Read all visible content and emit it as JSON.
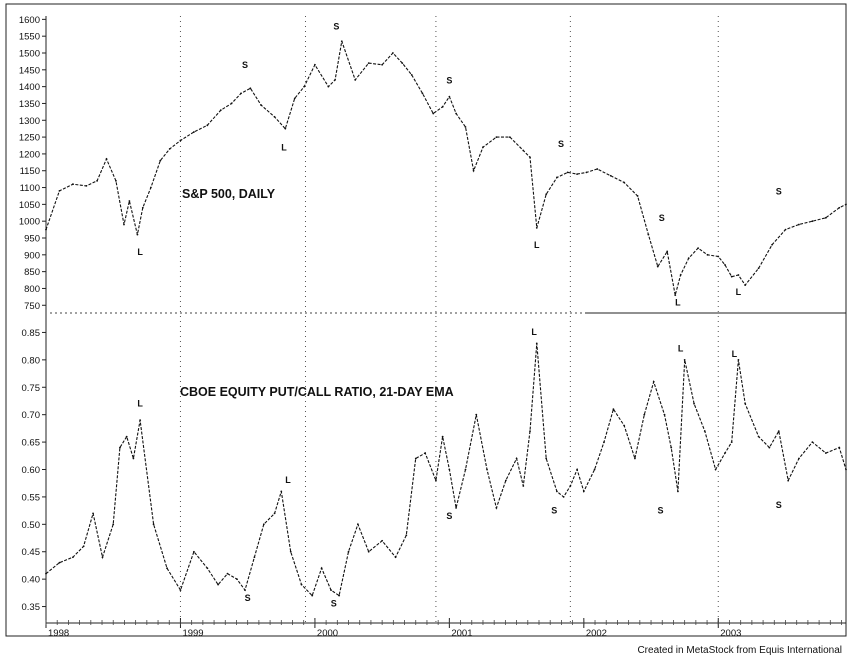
{
  "credit": "Created in MetaStock from Equis International",
  "chart_data": [
    {
      "type": "line",
      "title": "S&P 500, DAILY",
      "ylim": [
        730,
        1610
      ],
      "yticks": [
        750,
        800,
        850,
        900,
        950,
        1000,
        1050,
        1100,
        1150,
        1200,
        1250,
        1300,
        1350,
        1400,
        1450,
        1500,
        1550,
        1600
      ],
      "xticks": [
        "1998",
        "1999",
        "2000",
        "2001",
        "2002",
        "2003"
      ],
      "xtick_values": [
        1998.0,
        1999.0,
        2000.0,
        2001.0,
        2002.0,
        2003.0
      ],
      "xlim": [
        1998.0,
        2003.95
      ],
      "vlines": [
        1999.0,
        1999.93,
        2000.9,
        2001.9,
        2003.0
      ],
      "series": [
        {
          "x": [
            1998.0,
            1998.1,
            1998.2,
            1998.3,
            1998.38,
            1998.45,
            1998.52,
            1998.58,
            1998.62,
            1998.68,
            1998.72,
            1998.78,
            1998.85,
            1998.92,
            1999.0,
            1999.1,
            1999.2,
            1999.3,
            1999.38,
            1999.45,
            1999.52,
            1999.6,
            1999.7,
            1999.78,
            1999.85,
            1999.92,
            2000.0,
            2000.1,
            2000.15,
            2000.2,
            2000.3,
            2000.4,
            2000.5,
            2000.58,
            2000.65,
            2000.72,
            2000.8,
            2000.88,
            2000.95,
            2001.0,
            2001.05,
            2001.12,
            2001.18,
            2001.25,
            2001.35,
            2001.45,
            2001.55,
            2001.6,
            2001.65,
            2001.72,
            2001.8,
            2001.88,
            2001.95,
            2002.02,
            2002.1,
            2002.2,
            2002.3,
            2002.4,
            2002.48,
            2002.55,
            2002.62,
            2002.68,
            2002.72,
            2002.78,
            2002.85,
            2002.92,
            2003.0,
            2003.05,
            2003.1,
            2003.15,
            2003.2,
            2003.3,
            2003.4,
            2003.5,
            2003.6,
            2003.7,
            2003.8,
            2003.9,
            2003.95
          ],
          "values": [
            975,
            1090,
            1110,
            1105,
            1120,
            1185,
            1120,
            990,
            1060,
            960,
            1040,
            1100,
            1180,
            1215,
            1240,
            1265,
            1285,
            1330,
            1350,
            1380,
            1395,
            1345,
            1310,
            1275,
            1365,
            1400,
            1465,
            1400,
            1420,
            1535,
            1420,
            1470,
            1465,
            1500,
            1470,
            1435,
            1380,
            1320,
            1340,
            1370,
            1320,
            1280,
            1150,
            1220,
            1250,
            1250,
            1210,
            1190,
            980,
            1080,
            1130,
            1145,
            1140,
            1145,
            1155,
            1135,
            1115,
            1075,
            960,
            865,
            910,
            780,
            840,
            890,
            920,
            900,
            895,
            870,
            835,
            840,
            810,
            860,
            930,
            975,
            990,
            1000,
            1010,
            1040,
            1050
          ]
        }
      ],
      "annotations": [
        {
          "text": "L",
          "x": 1998.7,
          "y": 900
        },
        {
          "text": "S",
          "x": 1999.48,
          "y": 1455
        },
        {
          "text": "L",
          "x": 1999.77,
          "y": 1210
        },
        {
          "text": "S",
          "x": 2000.16,
          "y": 1570
        },
        {
          "text": "S",
          "x": 2001.0,
          "y": 1410
        },
        {
          "text": "S",
          "x": 2001.83,
          "y": 1220
        },
        {
          "text": "L",
          "x": 2001.65,
          "y": 920
        },
        {
          "text": "S",
          "x": 2002.58,
          "y": 1000
        },
        {
          "text": "L",
          "x": 2002.7,
          "y": 750
        },
        {
          "text": "L",
          "x": 2003.15,
          "y": 780
        },
        {
          "text": "S",
          "x": 2003.45,
          "y": 1080
        }
      ]
    },
    {
      "type": "line",
      "title": "CBOE EQUITY PUT/CALL RATIO, 21-DAY EMA",
      "ylim": [
        0.32,
        0.88
      ],
      "yticks": [
        0.35,
        0.4,
        0.45,
        0.5,
        0.55,
        0.6,
        0.65,
        0.7,
        0.75,
        0.8,
        0.85
      ],
      "ytick_labels": [
        "0.35",
        "0.40",
        "0.45",
        "0.50",
        "0.55",
        "0.60",
        "0.65",
        "0.70",
        "0.75",
        "0.80",
        "0.85"
      ],
      "xticks": [
        "1998",
        "1999",
        "2000",
        "2001",
        "2002",
        "2003"
      ],
      "xtick_values": [
        1998.0,
        1999.0,
        2000.0,
        2001.0,
        2002.0,
        2003.0
      ],
      "xlim": [
        1998.0,
        2003.95
      ],
      "vlines": [
        1999.0,
        1999.93,
        2000.9,
        2001.9,
        2003.0
      ],
      "series": [
        {
          "x": [
            1998.0,
            1998.1,
            1998.2,
            1998.28,
            1998.35,
            1998.42,
            1998.5,
            1998.55,
            1998.6,
            1998.65,
            1998.7,
            1998.8,
            1998.9,
            1999.0,
            1999.1,
            1999.2,
            1999.28,
            1999.35,
            1999.42,
            1999.48,
            1999.55,
            1999.62,
            1999.7,
            1999.75,
            1999.82,
            1999.9,
            1999.98,
            2000.05,
            2000.12,
            2000.18,
            2000.25,
            2000.32,
            2000.4,
            2000.5,
            2000.6,
            2000.68,
            2000.75,
            2000.82,
            2000.9,
            2000.95,
            2001.0,
            2001.05,
            2001.12,
            2001.2,
            2001.28,
            2001.35,
            2001.42,
            2001.5,
            2001.55,
            2001.6,
            2001.65,
            2001.72,
            2001.8,
            2001.85,
            2001.9,
            2001.95,
            2002.0,
            2002.08,
            2002.15,
            2002.22,
            2002.3,
            2002.38,
            2002.45,
            2002.52,
            2002.6,
            2002.65,
            2002.7,
            2002.75,
            2002.82,
            2002.9,
            2002.98,
            2003.05,
            2003.1,
            2003.15,
            2003.2,
            2003.3,
            2003.38,
            2003.45,
            2003.52,
            2003.6,
            2003.7,
            2003.8,
            2003.9,
            2003.95
          ],
          "values": [
            0.41,
            0.43,
            0.44,
            0.46,
            0.52,
            0.44,
            0.5,
            0.64,
            0.66,
            0.62,
            0.69,
            0.5,
            0.42,
            0.38,
            0.45,
            0.42,
            0.39,
            0.41,
            0.4,
            0.38,
            0.44,
            0.5,
            0.52,
            0.56,
            0.45,
            0.39,
            0.37,
            0.42,
            0.38,
            0.37,
            0.45,
            0.5,
            0.45,
            0.47,
            0.44,
            0.48,
            0.62,
            0.63,
            0.58,
            0.66,
            0.6,
            0.53,
            0.6,
            0.7,
            0.6,
            0.53,
            0.58,
            0.62,
            0.57,
            0.67,
            0.83,
            0.62,
            0.56,
            0.55,
            0.57,
            0.6,
            0.56,
            0.6,
            0.65,
            0.71,
            0.68,
            0.62,
            0.7,
            0.76,
            0.7,
            0.64,
            0.56,
            0.8,
            0.72,
            0.67,
            0.6,
            0.63,
            0.65,
            0.8,
            0.72,
            0.66,
            0.64,
            0.67,
            0.58,
            0.62,
            0.65,
            0.63,
            0.64,
            0.6
          ]
        }
      ],
      "annotations": [
        {
          "text": "L",
          "x": 1998.7,
          "y": 0.715
        },
        {
          "text": "S",
          "x": 1999.5,
          "y": 0.36
        },
        {
          "text": "L",
          "x": 1999.8,
          "y": 0.575
        },
        {
          "text": "S",
          "x": 2000.14,
          "y": 0.35
        },
        {
          "text": "S",
          "x": 2001.0,
          "y": 0.51
        },
        {
          "text": "L",
          "x": 2001.63,
          "y": 0.845
        },
        {
          "text": "S",
          "x": 2001.78,
          "y": 0.52
        },
        {
          "text": "S",
          "x": 2002.57,
          "y": 0.52
        },
        {
          "text": "L",
          "x": 2002.72,
          "y": 0.815
        },
        {
          "text": "L",
          "x": 2003.12,
          "y": 0.805
        },
        {
          "text": "S",
          "x": 2003.45,
          "y": 0.53
        }
      ]
    }
  ]
}
